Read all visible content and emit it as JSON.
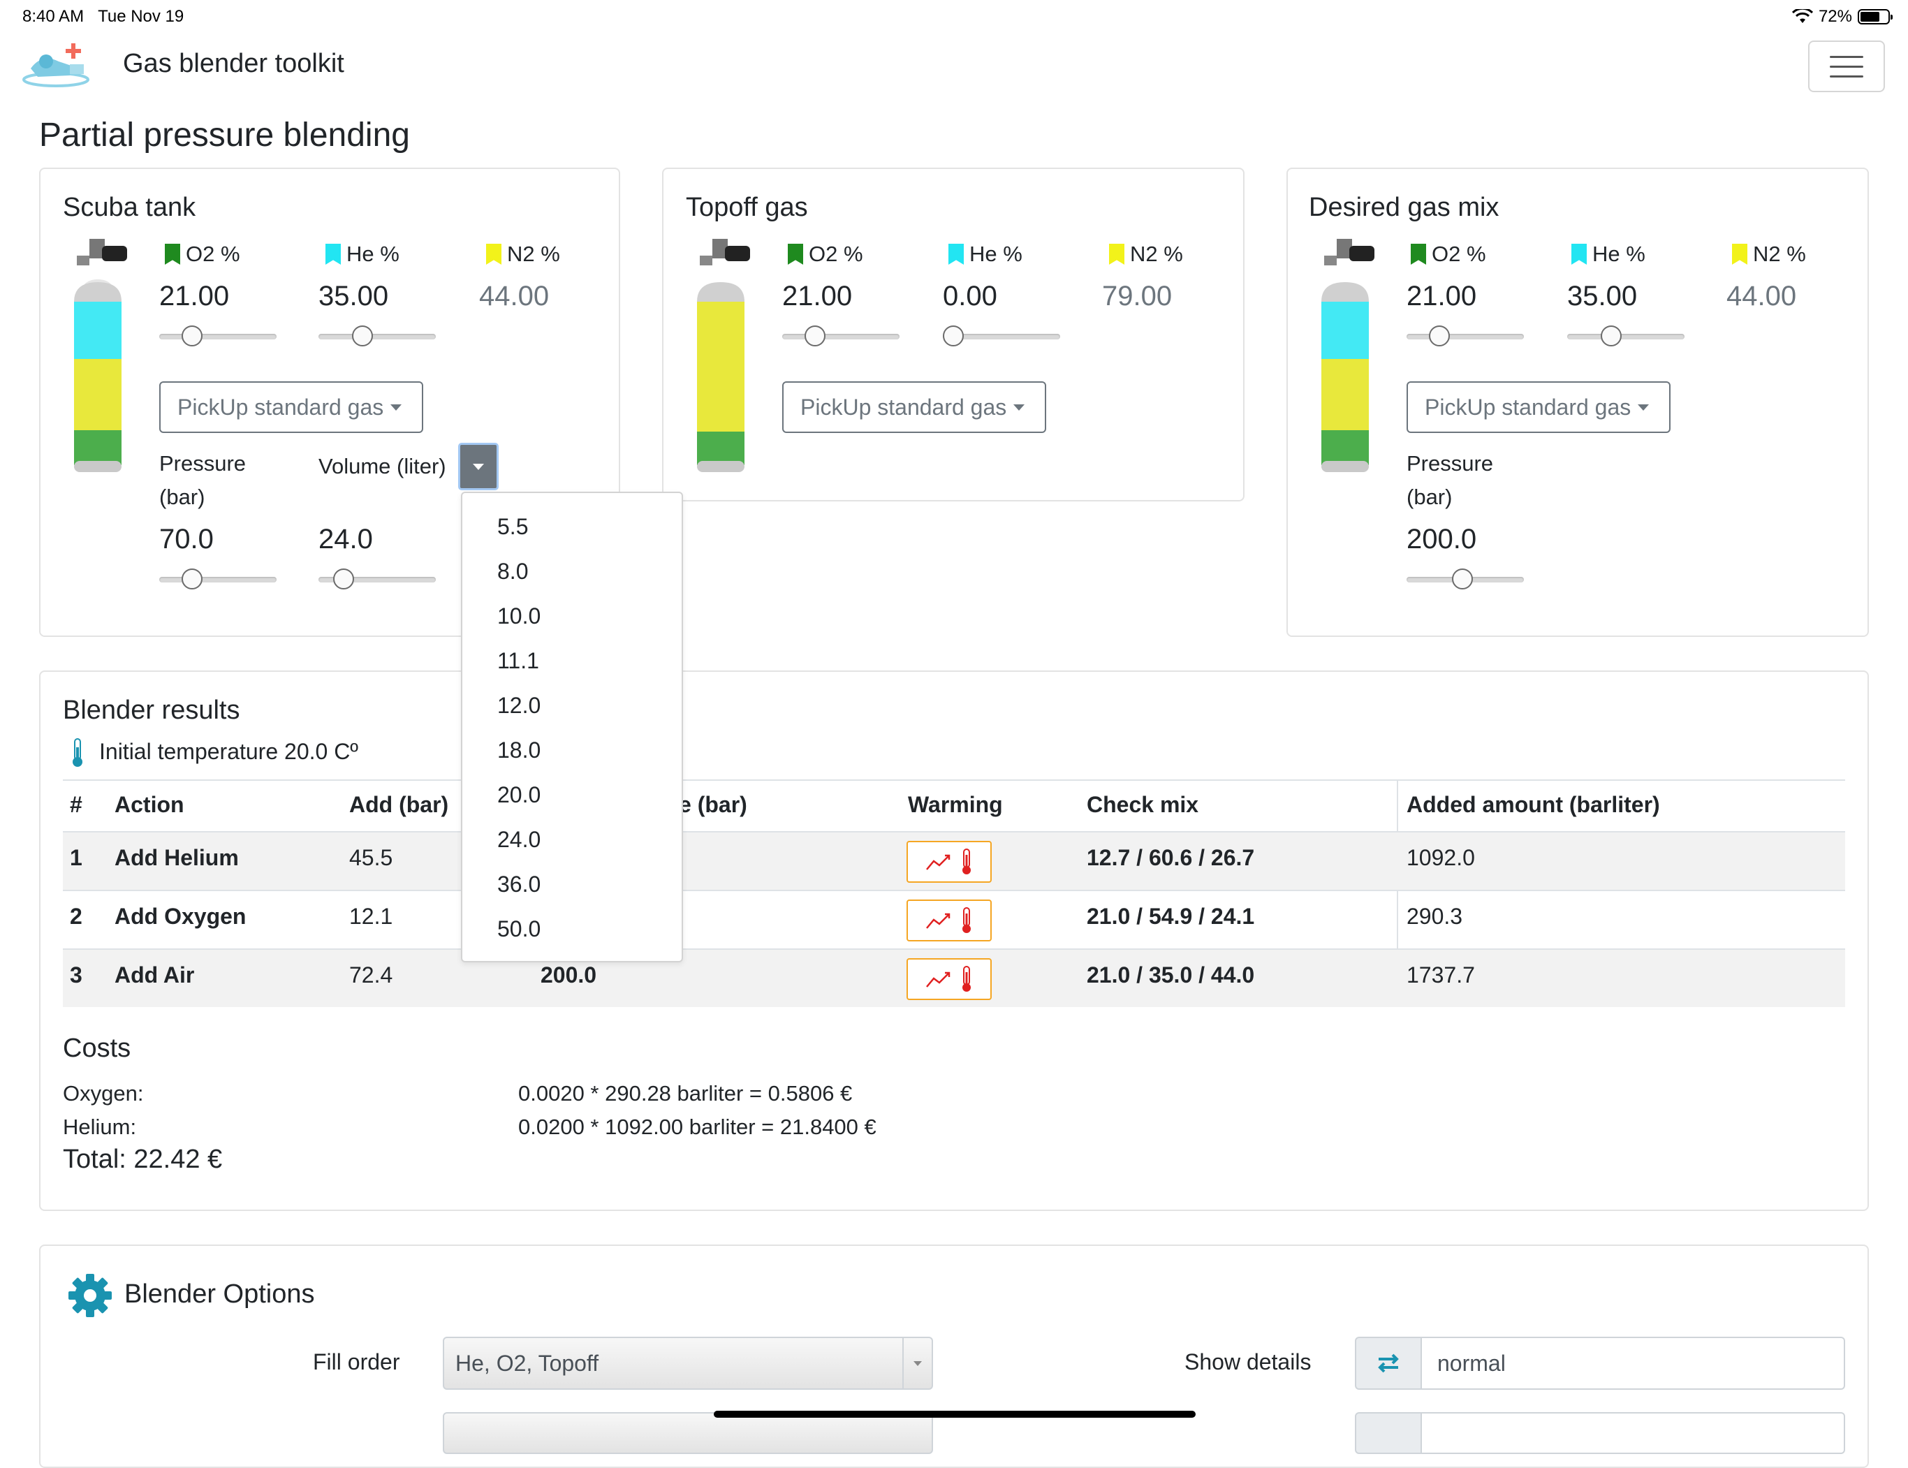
{
  "status_bar": {
    "time": "8:40 AM",
    "date": "Tue Nov 19",
    "battery": "72%",
    "battery_level": 0.72,
    "wifi_icon": "wifi-icon"
  },
  "navbar": {
    "brand": "Gas blender toolkit",
    "menu_icon": "hamburger-icon"
  },
  "page_title": "Partial pressure blending",
  "colors": {
    "o2": "#1f8a1f",
    "he": "#22e5f2",
    "n2": "#f2f21a",
    "warming": "#f5a623",
    "thermo": "#e02020",
    "accent": "#1a93b0"
  },
  "labels": {
    "o2": "O2 %",
    "he": "He %",
    "n2": "N2 %",
    "pickup": "PickUp standard gas",
    "pressure": "Pressure",
    "pressure_unit": "(bar)",
    "volume": "Volume (liter)"
  },
  "scuba_tank": {
    "title": "Scuba tank",
    "o2": "21.00",
    "he": "35.00",
    "n2": "44.00",
    "pressure": "70.0",
    "volume": "24.0",
    "o2_slider": 0.23,
    "he_slider": 0.35,
    "pressure_slider": 0.23,
    "volume_slider": 0.15
  },
  "topoff_gas": {
    "title": "Topoff gas",
    "o2": "21.00",
    "he": "0.00",
    "n2": "79.00",
    "o2_slider": 0.23,
    "he_slider": 0.0
  },
  "desired_mix": {
    "title": "Desired gas mix",
    "o2": "21.00",
    "he": "35.00",
    "n2": "44.00",
    "pressure": "200.0",
    "o2_slider": 0.23,
    "he_slider": 0.35,
    "pressure_slider": 0.47
  },
  "volume_menu": {
    "options": [
      "5.5",
      "8.0",
      "10.0",
      "11.1",
      "12.0",
      "18.0",
      "20.0",
      "24.0",
      "36.0",
      "50.0"
    ]
  },
  "results": {
    "title": "Blender results",
    "temperature": "Initial temperature 20.0 Cº",
    "headers": {
      "num": "#",
      "action": "Action",
      "add": "Add (bar)",
      "pressure": "e (bar)",
      "warming": "Warming",
      "check": "Check mix",
      "amount": "Added amount (barliter)"
    },
    "rows": [
      {
        "num": "1",
        "action": "Add Helium",
        "add": "45.5",
        "pressure": "",
        "check": "12.7 / 60.6 / 26.7",
        "amount": "1092.0"
      },
      {
        "num": "2",
        "action": "Add Oxygen",
        "add": "12.1",
        "pressure": "",
        "check": "21.0 / 54.9 / 24.1",
        "amount": "290.3"
      },
      {
        "num": "3",
        "action": "Add Air",
        "add": "72.4",
        "pressure": "200.0",
        "check": "21.0 / 35.0 / 44.0",
        "amount": "1737.7"
      }
    ]
  },
  "costs": {
    "title": "Costs",
    "oxygen_label": "Oxygen:",
    "oxygen_formula": "0.0020 * 290.28 barliter = 0.5806 €",
    "helium_label": "Helium:",
    "helium_formula": "0.0200 * 1092.00 barliter = 21.8400 €",
    "total": "Total: 22.42 €"
  },
  "options": {
    "title": "Blender Options",
    "fill_order_label": "Fill order",
    "fill_order_value": "He, O2, Topoff",
    "show_details_label": "Show details",
    "show_details_value": "normal"
  }
}
